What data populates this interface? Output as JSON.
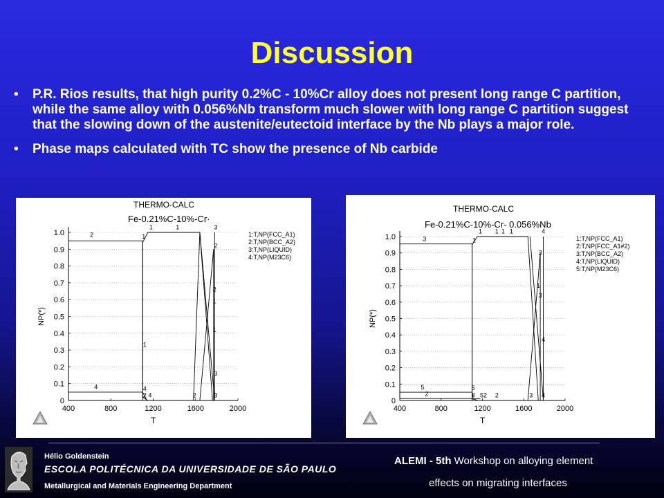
{
  "slide": {
    "title": "Discussion",
    "bullets": [
      "P.R. Rios results, that high purity 0.2%C - 10%Cr alloy does not present long range C partition, while the same alloy with 0.056%Nb transform much slower with long range C partition suggest that the slowing down of the austenite/eutectoid interface by the Nb plays a major role.",
      "Phase maps calculated with TC show the presence of Nb carbide"
    ],
    "bullet_glyph": "•"
  },
  "chart_data": [
    {
      "type": "line",
      "header": "THERMO-CALC",
      "title": "Fe-0.21%C-10%-Cr·",
      "xlabel": "T",
      "ylabel": "NP(*)",
      "xlim": [
        400,
        2000
      ],
      "ylim": [
        0,
        1.0
      ],
      "xticks": [
        "400",
        "800",
        "1200",
        "1600",
        "2000"
      ],
      "yticks": [
        "0",
        "0.1",
        "0.2",
        "0.3",
        "0.4",
        "0.5",
        "0.6",
        "0.7",
        "0.8",
        "0.9",
        "1.0"
      ],
      "legend": [
        "1:T,NP(FCC_A1)",
        "2:T,NP(BCC_A2)",
        "3:T,NP(LIQUID)",
        "4:T,NP(M23C6)"
      ],
      "series": [
        {
          "label": "1",
          "points": [
            [
              1100,
              0
            ],
            [
              1100,
              0.94
            ],
            [
              1150,
              1.0
            ],
            [
              1640,
              1.0
            ],
            [
              1760,
              0
            ]
          ]
        },
        {
          "label": "2",
          "points": [
            [
              400,
              0.95
            ],
            [
              1100,
              0.95
            ],
            [
              1100,
              0.02
            ],
            [
              1150,
              0
            ]
          ]
        },
        {
          "label": "2",
          "points": [
            [
              1580,
              0
            ],
            [
              1640,
              1.0
            ]
          ]
        },
        {
          "label": "2",
          "points": [
            [
              1640,
              0
            ],
            [
              1770,
              0.9
            ],
            [
              1770,
              0
            ]
          ]
        },
        {
          "label": "3",
          "points": [
            [
              1640,
              1.0
            ],
            [
              1780,
              0
            ],
            [
              1780,
              1.0
            ]
          ]
        },
        {
          "label": "4",
          "points": [
            [
              400,
              0.05
            ],
            [
              1100,
              0.05
            ],
            [
              1140,
              0.0
            ]
          ]
        }
      ],
      "curve_labels": [
        {
          "text": "2",
          "x": 620,
          "y": 0.965
        },
        {
          "text": "1",
          "x": 1110,
          "y": 0.955
        },
        {
          "text": "1",
          "x": 1180,
          "y": 1.01
        },
        {
          "text": "1",
          "x": 1430,
          "y": 1.01
        },
        {
          "text": "3",
          "x": 1790,
          "y": 1.01
        },
        {
          "text": "2",
          "x": 1790,
          "y": 0.9
        },
        {
          "text": "2",
          "x": 1780,
          "y": 0.64
        },
        {
          "text": "1",
          "x": 1780,
          "y": 0.57
        },
        {
          "text": "1",
          "x": 1780,
          "y": 0.4
        },
        {
          "text": "3",
          "x": 1790,
          "y": 0.14
        },
        {
          "text": "3",
          "x": 1790,
          "y": 0.01
        },
        {
          "text": "2",
          "x": 1590,
          "y": 0.01
        },
        {
          "text": "1",
          "x": 1120,
          "y": 0.31
        },
        {
          "text": "4",
          "x": 660,
          "y": 0.06
        },
        {
          "text": "4",
          "x": 1120,
          "y": 0.05
        },
        {
          "text": "2",
          "x": 1120,
          "y": 0.01
        },
        {
          "text": "4",
          "x": 1170,
          "y": 0.01
        }
      ]
    },
    {
      "type": "line",
      "header": "THERMO-CALC",
      "title": "Fe-0.21%C-10%-Cr- 0.056%Nb",
      "xlabel": "T",
      "ylabel": "NP(*)",
      "xlim": [
        400,
        2000
      ],
      "ylim": [
        0,
        1.0
      ],
      "xticks": [
        "400",
        "800",
        "1200",
        "1600",
        "2000"
      ],
      "yticks": [
        "0",
        "0.1",
        "0.2",
        "0.3",
        "0.4",
        "0.5",
        "0.6",
        "0.7",
        "0.8",
        "0.9",
        "1.0"
      ],
      "legend": [
        "1:T,NP(FCC_A1)",
        "2:T,NP(FCC_A1#2)",
        "3:T,NP(BCC_A2)",
        "4:T,NP(LIQUID)",
        "5:T,NP(M23C6)"
      ],
      "series": [
        {
          "label": "1",
          "points": [
            [
              1100,
              0
            ],
            [
              1100,
              0.95
            ],
            [
              1150,
              1.0
            ],
            [
              1640,
              1.0
            ],
            [
              1740,
              0
            ]
          ]
        },
        {
          "label": "3",
          "points": [
            [
              400,
              0.955
            ],
            [
              1100,
              0.955
            ],
            [
              1100,
              0.01
            ],
            [
              1160,
              0
            ]
          ]
        },
        {
          "label": "3",
          "points": [
            [
              1640,
              0
            ],
            [
              1760,
              0.9
            ],
            [
              1760,
              0
            ]
          ]
        },
        {
          "label": "4",
          "points": [
            [
              1660,
              1.0
            ],
            [
              1790,
              0
            ],
            [
              1790,
              1.0
            ]
          ]
        },
        {
          "label": "5",
          "points": [
            [
              400,
              0.05
            ],
            [
              1100,
              0.05
            ],
            [
              1110,
              0.02
            ]
          ]
        },
        {
          "label": "2",
          "points": [
            [
              400,
              0.012
            ],
            [
              1100,
              0.012
            ],
            [
              1180,
              0.01
            ]
          ]
        }
      ],
      "curve_labels": [
        {
          "text": "3",
          "x": 640,
          "y": 0.965
        },
        {
          "text": "1",
          "x": 1120,
          "y": 0.955
        },
        {
          "text": "1",
          "x": 1180,
          "y": 1.01
        },
        {
          "text": "1",
          "x": 1340,
          "y": 1.01
        },
        {
          "text": "1",
          "x": 1400,
          "y": 1.01
        },
        {
          "text": "1",
          "x": 1480,
          "y": 1.01
        },
        {
          "text": "4",
          "x": 1790,
          "y": 1.01
        },
        {
          "text": "3",
          "x": 1760,
          "y": 0.88
        },
        {
          "text": "1",
          "x": 1740,
          "y": 0.68
        },
        {
          "text": "3",
          "x": 1760,
          "y": 0.62
        },
        {
          "text": "4",
          "x": 1790,
          "y": 0.35
        },
        {
          "text": "5",
          "x": 620,
          "y": 0.06
        },
        {
          "text": "2",
          "x": 660,
          "y": 0.02
        },
        {
          "text": "5",
          "x": 1110,
          "y": 0.055
        },
        {
          "text": "3",
          "x": 1110,
          "y": 0.01
        },
        {
          "text": "52",
          "x": 1210,
          "y": 0.01
        },
        {
          "text": "2",
          "x": 1340,
          "y": 0.01
        },
        {
          "text": "3",
          "x": 1670,
          "y": 0.01
        },
        {
          "text": "4",
          "x": 1790,
          "y": 0.01
        }
      ]
    }
  ],
  "footer": {
    "author": "Hélio Goldenstein",
    "school": "ESCOLA POLITÉCNICA DA UNIVERSIDADE DE SÃO PAULO",
    "department": "Metallurgical and Materials Engineering Department",
    "conference_bold": "ALEMI - 5th",
    "conference_line1": "Workshop on alloying element",
    "conference_line2": "effects on migrating interfaces",
    "logo_icon": "academic-bust-logo"
  },
  "colors": {
    "title": "#ffff33",
    "background_top": "#2a2ae0",
    "background_bottom": "#000010",
    "text": "#ffffff"
  }
}
